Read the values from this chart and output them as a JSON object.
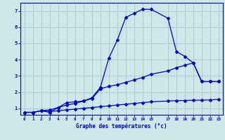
{
  "background_color": "#cce8e8",
  "grid_color": "#aacccc",
  "line_color": "#0000cc",
  "xlabel": "Graphe des températures (°c)",
  "xlabel_color": "#0000cc",
  "ylabel_color": "#0000cc",
  "xlim": [
    -0.5,
    23.5
  ],
  "ylim": [
    0.6,
    7.5
  ],
  "yticks": [
    1,
    2,
    3,
    4,
    5,
    6,
    7
  ],
  "xticks": [
    0,
    1,
    2,
    3,
    4,
    5,
    6,
    7,
    8,
    9,
    10,
    11,
    12,
    13,
    14,
    15,
    17,
    18,
    19,
    20,
    21,
    22,
    23
  ],
  "line1_x": [
    0,
    1,
    2,
    3,
    4,
    5,
    6,
    7,
    8,
    9,
    10,
    11,
    12,
    13,
    14,
    15,
    17,
    18,
    19,
    20,
    21,
    22,
    23
  ],
  "line1_y": [
    0.75,
    0.75,
    0.85,
    0.75,
    1.05,
    1.35,
    1.4,
    1.45,
    1.65,
    2.3,
    4.1,
    5.2,
    6.6,
    6.85,
    7.1,
    7.1,
    6.55,
    4.5,
    4.2,
    3.8,
    2.65,
    2.65,
    2.65
  ],
  "line2_x": [
    0,
    1,
    2,
    3,
    4,
    5,
    6,
    7,
    8,
    9,
    10,
    11,
    12,
    13,
    14,
    15,
    17,
    18,
    19,
    20,
    21,
    22,
    23
  ],
  "line2_y": [
    0.75,
    0.75,
    0.85,
    0.9,
    1.05,
    1.2,
    1.3,
    1.45,
    1.6,
    2.2,
    2.35,
    2.45,
    2.6,
    2.75,
    2.9,
    3.1,
    3.3,
    3.5,
    3.65,
    3.8,
    2.65,
    2.65,
    2.65
  ],
  "line3_x": [
    0,
    1,
    2,
    3,
    4,
    5,
    6,
    7,
    8,
    9,
    10,
    11,
    12,
    13,
    14,
    15,
    17,
    18,
    19,
    20,
    21,
    22,
    23
  ],
  "line3_y": [
    0.75,
    0.75,
    0.85,
    0.8,
    0.85,
    0.9,
    0.95,
    1.0,
    1.05,
    1.1,
    1.15,
    1.2,
    1.25,
    1.3,
    1.35,
    1.4,
    1.45,
    1.47,
    1.48,
    1.5,
    1.5,
    1.52,
    1.55
  ]
}
